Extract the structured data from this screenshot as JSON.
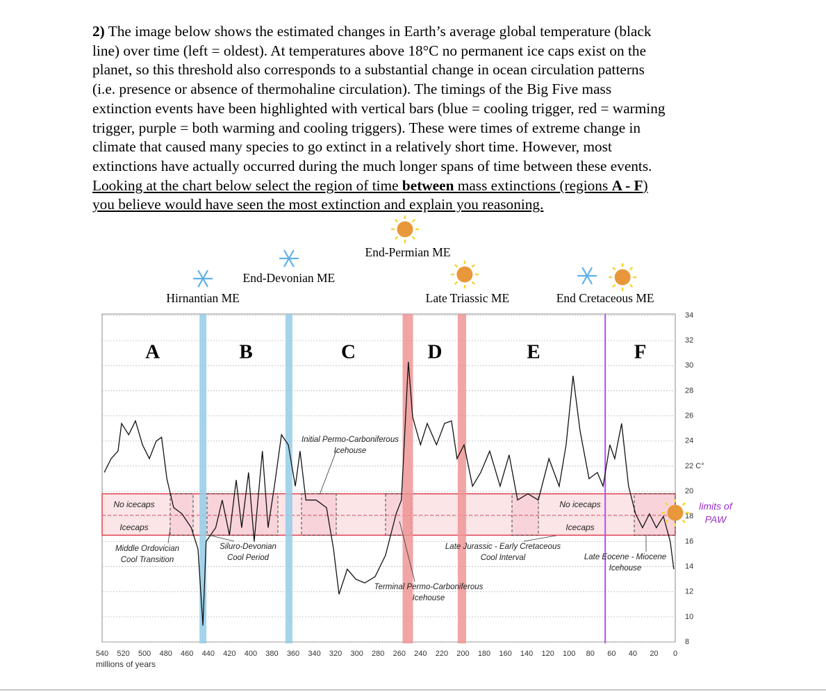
{
  "question": {
    "number": "2)",
    "lines": [
      " The image below shows the estimated changes in Earth’s average global temperature (black",
      "line) over time (left = oldest). At temperatures above 18°C no permanent ice caps exist on the",
      "planet, so this threshold also corresponds to a substantial change in ocean circulation patterns",
      "(i.e. presence or absence of thermohaline circulation). The timings of the Big Five mass",
      "extinction events have been highlighted with vertical bars (blue = cooling trigger, red = warming",
      "trigger, purple = both warming and cooling triggers). These were times of extreme change in",
      "climate that caused many species to go extinct in a relatively short time. However, most",
      "extinctions have actually occurred during the much longer spans of time between these events."
    ],
    "instruction": [
      "Looking at the chart below select the region of time ",
      "between",
      " mass extinctions (regions ",
      "A - F",
      ")"
    ],
    "instruction_last": "you believe would have seen the most extinction and explain you reasoning."
  },
  "chart_data": {
    "type": "line",
    "x_label": "millions of years",
    "xlim": [
      540,
      0
    ],
    "xticks": [
      540,
      520,
      500,
      480,
      460,
      440,
      420,
      400,
      380,
      360,
      340,
      320,
      300,
      280,
      260,
      240,
      220,
      200,
      180,
      160,
      140,
      120,
      100,
      80,
      60,
      40,
      20,
      0
    ],
    "ylim": [
      8,
      34
    ],
    "yticks": [
      34,
      32,
      30,
      28,
      26,
      24,
      {
        "value": 22,
        "label": "22 C°"
      },
      20,
      18,
      16,
      14,
      12,
      10,
      8
    ],
    "grid": true,
    "color": "#111111",
    "x": [
      538,
      531.5,
      525,
      521.7,
      515,
      508.6,
      502,
      495.5,
      489,
      484,
      479,
      472.6,
      464.7,
      456,
      449.7,
      445,
      442,
      433,
      426.8,
      420,
      413.7,
      408.5,
      402,
      396.7,
      389,
      383.6,
      377.7,
      371,
      364.6,
      358,
      353.5,
      348,
      338.4,
      328.6,
      322,
      316.8,
      309,
      301,
      292.6,
      282.8,
      273,
      263,
      258,
      251.5,
      247.4,
      240,
      233.7,
      225,
      217.4,
      210.8,
      205.6,
      199,
      191,
      183.3,
      174.8,
      165,
      156.5,
      148.6,
      138.8,
      129,
      119,
      109.4,
      102.8,
      96.3,
      89.7,
      81.2,
      73.4,
      68,
      61.6,
      57,
      50.5,
      44,
      37.4,
      30.8,
      24.3,
      17.8,
      11.2,
      4.7,
      1.4
    ],
    "values": [
      21.5,
      22.6,
      23.2,
      25.4,
      24.5,
      25.6,
      23.7,
      22.6,
      24,
      24.3,
      21,
      18.7,
      18.2,
      17.1,
      15.4,
      9.3,
      16,
      17.1,
      19.3,
      16.5,
      20.9,
      17.1,
      21.5,
      16,
      23.2,
      17.1,
      20.4,
      24.5,
      23.7,
      20.4,
      23.2,
      19.3,
      19.3,
      18.7,
      15.4,
      11.8,
      13.8,
      13,
      12.7,
      13.2,
      14.9,
      18.2,
      19.3,
      30.3,
      25.9,
      23.7,
      25.4,
      23.7,
      25.4,
      25.6,
      22.6,
      23.7,
      20.4,
      21.5,
      23.2,
      20.4,
      22.9,
      19.3,
      19.8,
      19.3,
      22.6,
      20.4,
      23.7,
      29.2,
      24.8,
      21,
      21.5,
      20.4,
      23.7,
      22.6,
      25.4,
      20.4,
      18.2,
      17.1,
      18.2,
      17.1,
      18,
      16,
      13.8
    ],
    "trigger_colors": {
      "cooling": "#93cde9",
      "warming": "#ef9595",
      "both": "#b84cf2"
    },
    "events": [
      {
        "label": "Hirnantian ME",
        "age": 445,
        "trigger": "cooling"
      },
      {
        "label": "End-Devonian ME",
        "age": 364,
        "trigger": "cooling"
      },
      {
        "label": "End-Permian ME",
        "age": 252,
        "trigger": "warming"
      },
      {
        "label": "Late Triassic ME",
        "age": 201,
        "trigger": "warming"
      },
      {
        "label": "End Cretaceous ME",
        "age": 66,
        "trigger": "both"
      }
    ],
    "regions": [
      "A",
      "B",
      "C",
      "D",
      "E",
      "F"
    ],
    "paw_band": [
      16.5,
      19.8
    ],
    "paw_label": [
      "limits of",
      "PAW"
    ],
    "zone_labels": [
      "No icecaps",
      "Icecaps"
    ],
    "annotations": [
      [
        "Middle Ordovician",
        "Cool Transition"
      ],
      [
        "Siluro-Devonian",
        "Cool Period"
      ],
      [
        "Initial Permo-Carboniferous",
        "Icehouse"
      ],
      [
        "Terminal Permo-Carboniferous",
        "Icehouse"
      ],
      [
        "Late Jurassic - Early Cretaceous",
        "Cool Interval"
      ],
      [
        "Late Eocene - Miocene",
        "Icehouse"
      ]
    ]
  }
}
